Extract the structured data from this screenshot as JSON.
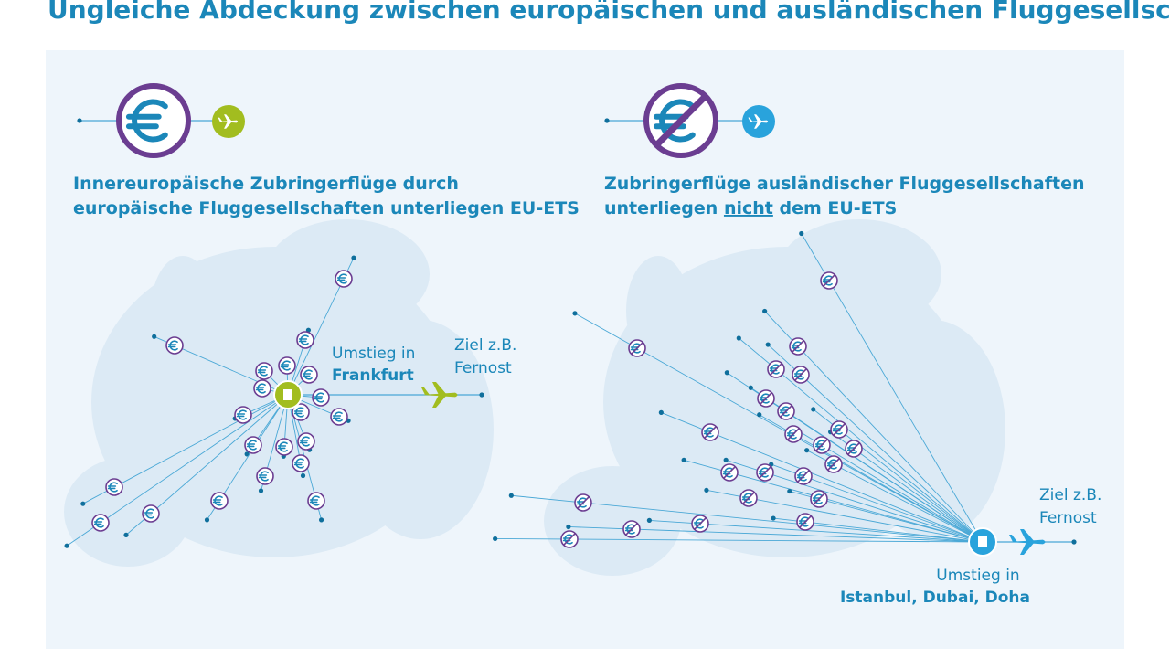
{
  "title": "Ungleiche Abdeckung zwischen europäischen und ausländischen Fluggesellschaften",
  "left": {
    "heading_line1": "Innereuropäische Zubringerflüge durch",
    "heading_line2": "europäische Fluggesellschaften unterliegen EU-ETS",
    "hub_prefix": "Umstieg in",
    "hub_name": "Frankfurt",
    "destination_line1": "Ziel z.B.",
    "destination_line2": "Fernost"
  },
  "right": {
    "heading_line1": "Zubringerflüge ausländischer Fluggesellschaften",
    "heading_line2_before": "unterliegen ",
    "heading_line2_emphasis": "nicht",
    "heading_line2_after": " dem EU-ETS",
    "hub_prefix": "Umstieg in",
    "hub_name": "Istanbul, Dubai, Doha",
    "destination_line1": "Ziel z.B.",
    "destination_line2": "Fernost"
  }
}
